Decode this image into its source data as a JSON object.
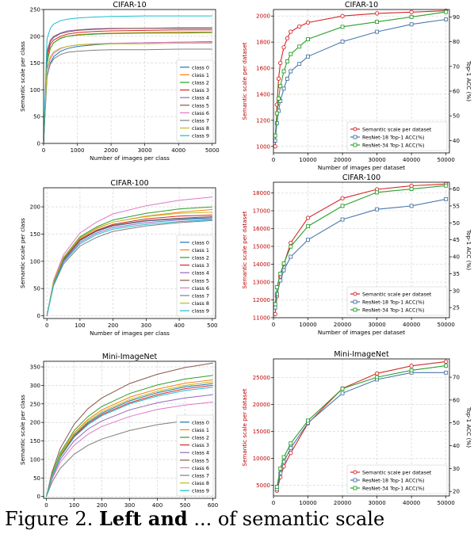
{
  "chart_data": [
    {
      "type": "line",
      "title": "CIFAR-10",
      "xlabel": "Number of images per class",
      "ylabel": "Semantic scale per class",
      "xlim": [
        0,
        5100
      ],
      "ylim": [
        0,
        250
      ],
      "xticks": [
        0,
        1000,
        2000,
        3000,
        4000,
        5000
      ],
      "yticks": [
        0,
        50,
        100,
        150,
        200,
        250
      ],
      "grid": true,
      "legend": "bottom-right",
      "x": [
        0,
        100,
        200,
        300,
        500,
        700,
        1000,
        1500,
        2000,
        3000,
        4000,
        5000
      ],
      "series": [
        {
          "name": "class 0",
          "color": "#1f77b4",
          "values": [
            2,
            125,
            150,
            162,
            172,
            177,
            181,
            184,
            186,
            188,
            189,
            190
          ]
        },
        {
          "name": "class 1",
          "color": "#ff7f0e",
          "values": [
            2,
            150,
            178,
            188,
            197,
            200,
            203,
            205,
            206,
            207,
            208,
            208
          ]
        },
        {
          "name": "class 2",
          "color": "#2ca02c",
          "values": [
            2,
            150,
            178,
            188,
            196,
            200,
            202,
            204,
            205,
            206,
            206,
            207
          ]
        },
        {
          "name": "class 3",
          "color": "#d62728",
          "values": [
            2,
            160,
            185,
            193,
            200,
            204,
            207,
            209,
            210,
            211,
            212,
            212
          ]
        },
        {
          "name": "class 4",
          "color": "#9467bd",
          "values": [
            2,
            172,
            193,
            200,
            206,
            210,
            212,
            214,
            215,
            215,
            216,
            216
          ]
        },
        {
          "name": "class 5",
          "color": "#8c564b",
          "values": [
            2,
            168,
            190,
            198,
            205,
            208,
            211,
            213,
            214,
            215,
            215,
            215
          ]
        },
        {
          "name": "class 6",
          "color": "#e377c2",
          "values": [
            2,
            135,
            158,
            168,
            177,
            181,
            184,
            186,
            187,
            188,
            189,
            189
          ]
        },
        {
          "name": "class 7",
          "color": "#7f7f7f",
          "values": [
            2,
            125,
            148,
            158,
            166,
            170,
            172,
            174,
            175,
            175,
            176,
            176
          ]
        },
        {
          "name": "class 8",
          "color": "#bcbd22",
          "values": [
            2,
            140,
            162,
            171,
            178,
            181,
            184,
            185,
            186,
            186,
            187,
            187
          ]
        },
        {
          "name": "class 9",
          "color": "#17becf",
          "values": [
            2,
            195,
            215,
            223,
            229,
            232,
            234,
            236,
            237,
            238,
            238,
            238
          ]
        }
      ]
    },
    {
      "type": "line",
      "title": "CIFAR-10",
      "xlabel": "Number of images per dataset",
      "ylabel": "Semantic scale per dataset",
      "ylabel_right": "Top-1 ACC (%)",
      "xlim": [
        0,
        51000
      ],
      "ylim": [
        950,
        2050
      ],
      "ylim_right": [
        35,
        93
      ],
      "xticks": [
        0,
        10000,
        20000,
        30000,
        40000,
        50000
      ],
      "yticks": [
        1000,
        1200,
        1400,
        1600,
        1800,
        2000
      ],
      "yticks_right": [
        40,
        50,
        60,
        70,
        80,
        90
      ],
      "grid": true,
      "legend": "bottom-right",
      "x": [
        500,
        1000,
        1500,
        2000,
        3000,
        4000,
        5000,
        7500,
        10000,
        20000,
        30000,
        40000,
        50000
      ],
      "series": [
        {
          "name": "Semantic scale per dataset",
          "color": "#d62728",
          "axis": "left",
          "marker": "circle",
          "values": [
            1000,
            1320,
            1520,
            1640,
            1760,
            1830,
            1880,
            1920,
            1950,
            2000,
            2020,
            2030,
            2040
          ]
        },
        {
          "name": "ResNet-18 Top-1 ACC(%)",
          "color": "#4a78a8",
          "axis": "right",
          "marker": "square",
          "values": [
            40,
            47,
            52,
            56,
            61,
            65,
            68,
            71,
            74,
            80,
            84,
            87,
            89
          ]
        },
        {
          "name": "ResNet-34 Top-1 ACC(%)",
          "color": "#2ca02c",
          "axis": "right",
          "marker": "square",
          "values": [
            42,
            51,
            57,
            62,
            68,
            72,
            75,
            78,
            81,
            86,
            88,
            90,
            92
          ]
        }
      ]
    },
    {
      "type": "line",
      "title": "CIFAR-100",
      "xlabel": "Number of images per class",
      "ylabel": "Semantic scale per class",
      "xlim": [
        -10,
        510
      ],
      "ylim": [
        -5,
        235
      ],
      "xticks": [
        0,
        100,
        200,
        300,
        400,
        500
      ],
      "yticks": [
        0,
        50,
        100,
        150,
        200
      ],
      "grid": true,
      "legend": "bottom-right",
      "x": [
        0,
        20,
        50,
        100,
        150,
        200,
        300,
        400,
        500
      ],
      "series": [
        {
          "name": "class 0",
          "color": "#1f77b4",
          "values": [
            0,
            60,
            102,
            138,
            155,
            165,
            174,
            178,
            180
          ]
        },
        {
          "name": "class 1",
          "color": "#ff7f0e",
          "values": [
            0,
            62,
            105,
            142,
            160,
            172,
            183,
            190,
            195
          ]
        },
        {
          "name": "class 2",
          "color": "#2ca02c",
          "values": [
            0,
            63,
            107,
            145,
            163,
            176,
            188,
            196,
            200
          ]
        },
        {
          "name": "class 3",
          "color": "#d62728",
          "values": [
            0,
            61,
            104,
            140,
            157,
            168,
            178,
            183,
            185
          ]
        },
        {
          "name": "class 4",
          "color": "#9467bd",
          "values": [
            0,
            58,
            100,
            135,
            152,
            162,
            171,
            176,
            178
          ]
        },
        {
          "name": "class 5",
          "color": "#8c564b",
          "values": [
            0,
            60,
            103,
            139,
            156,
            166,
            175,
            179,
            182
          ]
        },
        {
          "name": "class 6",
          "color": "#e377c2",
          "values": [
            0,
            65,
            112,
            152,
            172,
            187,
            202,
            212,
            218
          ]
        },
        {
          "name": "class 7",
          "color": "#7f7f7f",
          "values": [
            0,
            55,
            95,
            128,
            144,
            155,
            165,
            171,
            175
          ]
        },
        {
          "name": "class 8",
          "color": "#bcbd22",
          "values": [
            0,
            62,
            106,
            143,
            161,
            172,
            182,
            188,
            190
          ]
        },
        {
          "name": "class 9",
          "color": "#17becf",
          "values": [
            0,
            57,
            98,
            132,
            149,
            159,
            168,
            173,
            176
          ]
        }
      ]
    },
    {
      "type": "line",
      "title": "CIFAR-100",
      "xlabel": "Number of images per dataset",
      "ylabel": "Semantic scale per dataset",
      "ylabel_right": "Top-1 ACC (%)",
      "xlim": [
        0,
        51000
      ],
      "ylim": [
        11000,
        18600
      ],
      "ylim_right": [
        22,
        62
      ],
      "xticks": [
        0,
        10000,
        20000,
        30000,
        40000,
        50000
      ],
      "yticks": [
        11000,
        12000,
        13000,
        14000,
        15000,
        16000,
        17000,
        18000
      ],
      "yticks_right": [
        25,
        30,
        35,
        40,
        45,
        50,
        55,
        60
      ],
      "grid": true,
      "legend": "bottom-right",
      "x": [
        500,
        1000,
        2000,
        3000,
        5000,
        10000,
        20000,
        30000,
        40000,
        50000
      ],
      "series": [
        {
          "name": "Semantic scale per dataset",
          "color": "#d62728",
          "axis": "left",
          "marker": "circle",
          "values": [
            11200,
            12200,
            13300,
            14000,
            15200,
            16600,
            17700,
            18200,
            18400,
            18500
          ]
        },
        {
          "name": "ResNet-18 Top-1 ACC(%)",
          "color": "#4a78a8",
          "axis": "right",
          "marker": "square",
          "values": [
            25,
            29,
            33,
            36,
            40,
            45,
            51,
            54,
            55,
            57
          ]
        },
        {
          "name": "ResNet-34 Top-1 ACC(%)",
          "color": "#2ca02c",
          "axis": "right",
          "marker": "square",
          "values": [
            26,
            31,
            35,
            38,
            43,
            49,
            55,
            59,
            60,
            61
          ]
        }
      ]
    },
    {
      "type": "line",
      "title": "Mini-ImageNet",
      "xlabel": "Number of images per class",
      "ylabel": "Semantic scale per class",
      "xlim": [
        -10,
        610
      ],
      "ylim": [
        -5,
        365
      ],
      "xticks": [
        0,
        100,
        200,
        300,
        400,
        500,
        600
      ],
      "yticks": [
        0,
        50,
        100,
        150,
        200,
        250,
        300,
        350
      ],
      "grid": true,
      "legend": "bottom-right",
      "x": [
        0,
        20,
        50,
        100,
        150,
        200,
        300,
        400,
        500,
        600
      ],
      "series": [
        {
          "name": "class 0",
          "color": "#1f77b4",
          "values": [
            0,
            55,
            110,
            165,
            200,
            225,
            258,
            280,
            296,
            305
          ]
        },
        {
          "name": "class 1",
          "color": "#ff7f0e",
          "values": [
            0,
            57,
            114,
            172,
            208,
            234,
            268,
            290,
            306,
            315
          ]
        },
        {
          "name": "class 2",
          "color": "#2ca02c",
          "values": [
            0,
            59,
            118,
            178,
            216,
            243,
            278,
            301,
            317,
            327
          ]
        },
        {
          "name": "class 3",
          "color": "#d62728",
          "values": [
            0,
            54,
            108,
            162,
            197,
            221,
            253,
            275,
            291,
            300
          ]
        },
        {
          "name": "class 4",
          "color": "#9467bd",
          "values": [
            0,
            50,
            100,
            150,
            182,
            204,
            234,
            253,
            266,
            275
          ]
        },
        {
          "name": "class 5",
          "color": "#8c564b",
          "values": [
            0,
            65,
            130,
            195,
            237,
            266,
            305,
            330,
            348,
            360
          ]
        },
        {
          "name": "class 6",
          "color": "#e377c2",
          "values": [
            0,
            46,
            92,
            138,
            168,
            189,
            216,
            235,
            247,
            255
          ]
        },
        {
          "name": "class 7",
          "color": "#7f7f7f",
          "values": [
            0,
            38,
            76,
            114,
            138,
            155,
            178,
            194,
            204,
            210
          ]
        },
        {
          "name": "class 8",
          "color": "#bcbd22",
          "values": [
            0,
            56,
            112,
            168,
            204,
            229,
            262,
            284,
            300,
            310
          ]
        },
        {
          "name": "class 9",
          "color": "#17becf",
          "values": [
            0,
            53,
            106,
            160,
            194,
            218,
            250,
            271,
            286,
            295
          ]
        }
      ]
    },
    {
      "type": "line",
      "title": "Mini-ImageNet",
      "xlabel": "Number of images per dataset",
      "ylabel": "Semantic scale per dataset",
      "ylabel_right": "Top-1 ACC (%)",
      "xlim": [
        0,
        51000
      ],
      "ylim": [
        3000,
        28500
      ],
      "ylim_right": [
        18,
        78
      ],
      "xticks": [
        0,
        10000,
        20000,
        30000,
        40000,
        50000
      ],
      "yticks": [
        5000,
        10000,
        15000,
        20000,
        25000
      ],
      "yticks_right": [
        20,
        30,
        40,
        50,
        60,
        70
      ],
      "grid": true,
      "legend": "bottom-right",
      "x": [
        1000,
        2000,
        3000,
        5000,
        10000,
        20000,
        30000,
        40000,
        50000
      ],
      "series": [
        {
          "name": "Semantic scale per dataset",
          "color": "#d62728",
          "axis": "left",
          "marker": "circle",
          "values": [
            4000,
            6500,
            8500,
            11000,
            16500,
            23000,
            25800,
            27200,
            28000
          ]
        },
        {
          "name": "ResNet-18 Top-1 ACC(%)",
          "color": "#4a78a8",
          "axis": "right",
          "marker": "square",
          "values": [
            21,
            28,
            33,
            39,
            50,
            63,
            69,
            72,
            72
          ]
        },
        {
          "name": "ResNet-34 Top-1 ACC(%)",
          "color": "#2ca02c",
          "axis": "right",
          "marker": "square",
          "values": [
            22,
            30,
            35,
            41,
            51,
            65,
            70,
            73,
            75
          ]
        }
      ]
    }
  ],
  "caption": {
    "prefix": "Figure 2. ",
    "bold": "Left and",
    "rest": " ... of semantic scale"
  }
}
